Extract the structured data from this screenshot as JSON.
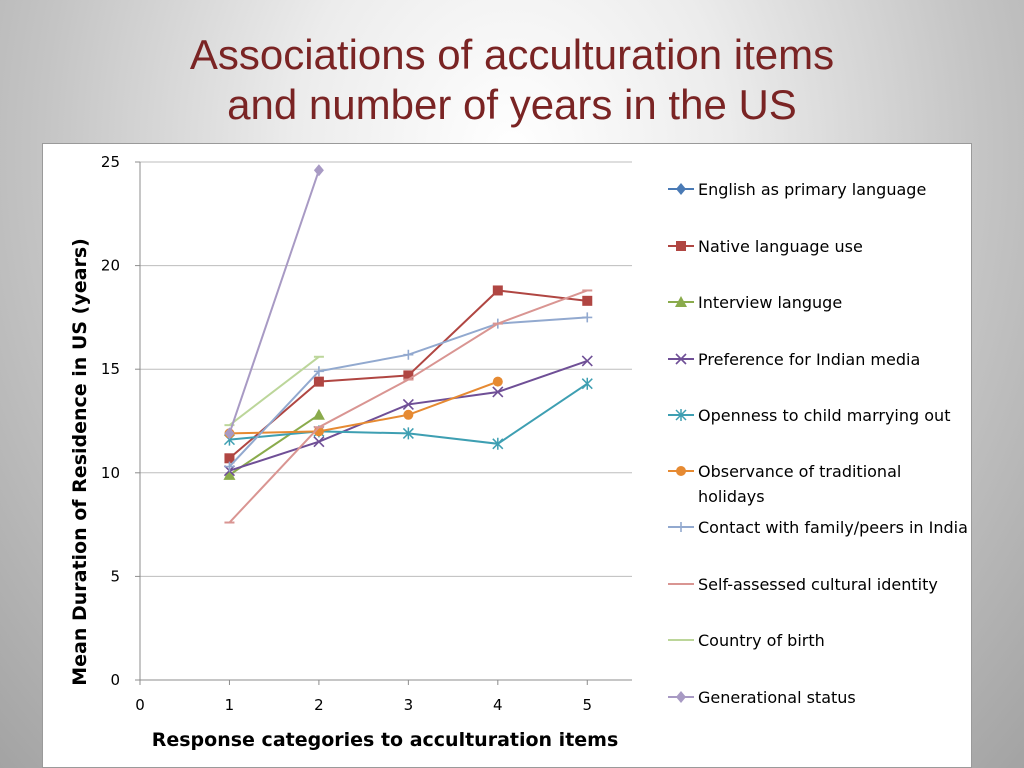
{
  "slide": {
    "title_line1": "Associations of acculturation items",
    "title_line2": "and number of years in the US"
  },
  "chart_data": {
    "type": "line",
    "title": "",
    "xlabel": "Response categories to acculturation items",
    "ylabel": "Mean Duration of Residence in US (years)",
    "xlim": [
      0,
      5.5
    ],
    "ylim": [
      0,
      25
    ],
    "xticks": [
      "0",
      "1",
      "2",
      "3",
      "4",
      "5"
    ],
    "yticks": [
      "0",
      "5",
      "10",
      "15",
      "20",
      "25"
    ],
    "grid": "horizontal",
    "legend_position": "right",
    "series": [
      {
        "name": "English as primary language",
        "color": "#4a7ab5",
        "marker": "diamond",
        "points": []
      },
      {
        "name": "Native language use",
        "color": "#b04642",
        "marker": "square",
        "points": [
          [
            1,
            10.7
          ],
          [
            2,
            14.4
          ],
          [
            3,
            14.7
          ],
          [
            4,
            18.8
          ],
          [
            5,
            18.3
          ]
        ]
      },
      {
        "name": "Interview languge",
        "color": "#8aab4c",
        "marker": "triangle",
        "points": [
          [
            1,
            9.9
          ],
          [
            2,
            12.8
          ]
        ]
      },
      {
        "name": "Preference for Indian media",
        "color": "#6f4f96",
        "marker": "x",
        "points": [
          [
            1,
            10.1
          ],
          [
            2,
            11.5
          ],
          [
            3,
            13.3
          ],
          [
            4,
            13.9
          ],
          [
            5,
            15.4
          ]
        ]
      },
      {
        "name": "Openness to child marrying out",
        "color": "#3e9fb2",
        "marker": "star",
        "points": [
          [
            1,
            11.6
          ],
          [
            2,
            12.0
          ],
          [
            3,
            11.9
          ],
          [
            4,
            11.4
          ],
          [
            5,
            14.3
          ]
        ]
      },
      {
        "name": "Observance of traditional holidays",
        "color": "#e68a32",
        "marker": "circle",
        "points": [
          [
            1,
            11.9
          ],
          [
            2,
            12.0
          ],
          [
            3,
            12.8
          ],
          [
            4,
            14.4
          ]
        ]
      },
      {
        "name": "Contact with family/peers in India",
        "color": "#92a9cf",
        "marker": "plus",
        "points": [
          [
            1,
            10.3
          ],
          [
            2,
            14.9
          ],
          [
            3,
            15.7
          ],
          [
            4,
            17.2
          ],
          [
            5,
            17.5
          ]
        ]
      },
      {
        "name": "Self-assessed cultural identity",
        "color": "#d99592",
        "marker": "dash",
        "points": [
          [
            1,
            7.6
          ],
          [
            2,
            12.2
          ],
          [
            3,
            14.5
          ],
          [
            4,
            17.2
          ],
          [
            5,
            18.8
          ]
        ]
      },
      {
        "name": "Country of birth",
        "color": "#bcd69a",
        "marker": "dash",
        "points": [
          [
            1,
            12.3
          ],
          [
            2,
            15.6
          ]
        ]
      },
      {
        "name": "Generational status",
        "color": "#a89ac4",
        "marker": "diamond",
        "points": [
          [
            1,
            11.9
          ],
          [
            2,
            24.6
          ]
        ]
      }
    ]
  }
}
